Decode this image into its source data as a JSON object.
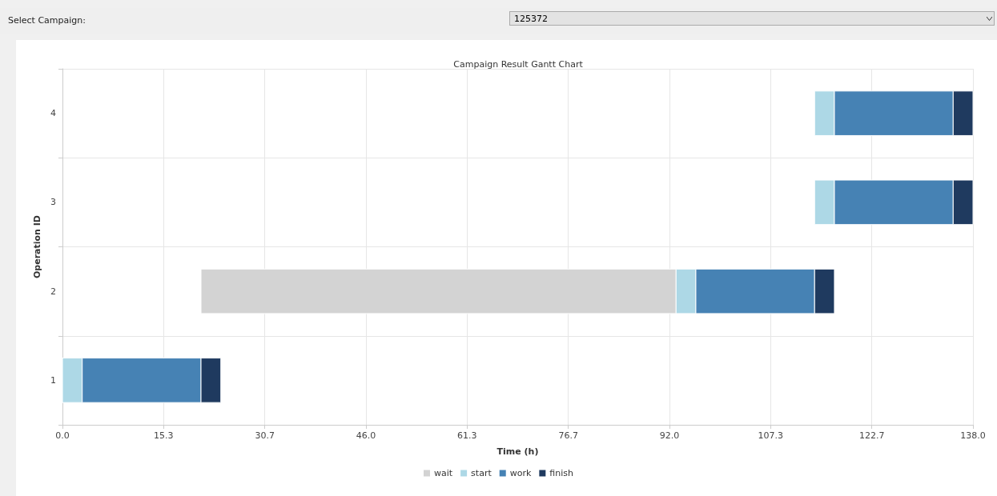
{
  "chart_data": {
    "type": "bar",
    "orientation": "horizontal",
    "title": "Campaign Result Gantt Chart",
    "xlabel": "Time (h)",
    "ylabel": "Operation ID",
    "categories": [
      "4",
      "3",
      "2",
      "1"
    ],
    "series": [
      {
        "name": "wait",
        "color": "#d3d3d3",
        "base": [
          null,
          null,
          21,
          null
        ],
        "values": [
          null,
          null,
          72,
          null
        ]
      },
      {
        "name": "start",
        "color": "#add8e6",
        "base": [
          114,
          114,
          93,
          0
        ],
        "values": [
          3,
          3,
          3,
          3
        ]
      },
      {
        "name": "work",
        "color": "#4682b4",
        "base": [
          117,
          117,
          96,
          3
        ],
        "values": [
          18,
          18,
          18,
          18
        ]
      },
      {
        "name": "finish",
        "color": "#1f3a5f",
        "base": [
          135,
          135,
          114,
          21
        ],
        "values": [
          3,
          3,
          3,
          3
        ]
      }
    ],
    "xlim": [
      0,
      138
    ],
    "xticks": [
      {
        "value": 0,
        "label": "0.0"
      },
      {
        "value": 15.333,
        "label": "15.3"
      },
      {
        "value": 30.667,
        "label": "30.7"
      },
      {
        "value": 46,
        "label": "46.0"
      },
      {
        "value": 61.333,
        "label": "61.3"
      },
      {
        "value": 76.667,
        "label": "76.7"
      },
      {
        "value": 92,
        "label": "92.0"
      },
      {
        "value": 107.333,
        "label": "107.3"
      },
      {
        "value": 122.667,
        "label": "122.7"
      },
      {
        "value": 138,
        "label": "138.0"
      }
    ],
    "grid": true,
    "legend": "bottom",
    "annotations": [
      "Select Campaign:",
      "125372"
    ]
  }
}
